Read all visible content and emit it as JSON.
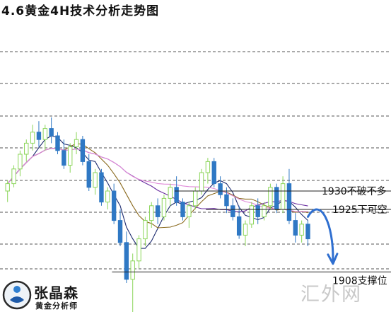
{
  "title": "4.6黄金4H技术分析走势图",
  "brand": {
    "name": "张晶森",
    "subtitle": "黄金分析师"
  },
  "watermark": "汇外网",
  "chart_data": {
    "type": "candlestick",
    "title": "4.6黄金4H技术分析走势图",
    "timeframe": "4H",
    "grid": "dashed horizontal",
    "colors": {
      "bull": "#8cd65a",
      "bear": "#2f78c4",
      "ma_fast": "#1c2a6e",
      "ma_mid": "#8a6a1e",
      "ma_slow": "#6a2ea0",
      "ma_long": "#e08ad8",
      "forecast": "#2f6fd0"
    },
    "levels": [
      {
        "label": "1930不破不多",
        "price": 1930
      },
      {
        "label": "1925下可空",
        "price": 1925
      },
      {
        "label": "1908支撑位",
        "price": 1908
      }
    ],
    "candles": [
      [
        1930,
        1933,
        1927,
        1932
      ],
      [
        1932,
        1937,
        1931,
        1936
      ],
      [
        1936,
        1941,
        1934,
        1940
      ],
      [
        1940,
        1944,
        1938,
        1943
      ],
      [
        1943,
        1948,
        1941,
        1946
      ],
      [
        1946,
        1949,
        1942,
        1944
      ],
      [
        1944,
        1948,
        1941,
        1947
      ],
      [
        1947,
        1950,
        1943,
        1945
      ],
      [
        1945,
        1946,
        1940,
        1941
      ],
      [
        1941,
        1944,
        1936,
        1937
      ],
      [
        1937,
        1943,
        1935,
        1942
      ],
      [
        1942,
        1946,
        1940,
        1944
      ],
      [
        1944,
        1945,
        1937,
        1938
      ],
      [
        1938,
        1940,
        1930,
        1931
      ],
      [
        1931,
        1936,
        1929,
        1935
      ],
      [
        1935,
        1936,
        1926,
        1927
      ],
      [
        1927,
        1931,
        1925,
        1930
      ],
      [
        1930,
        1932,
        1921,
        1922
      ],
      [
        1922,
        1925,
        1915,
        1916
      ],
      [
        1916,
        1919,
        1905,
        1906
      ],
      [
        1906,
        1913,
        1897,
        1911
      ],
      [
        1911,
        1918,
        1909,
        1917
      ],
      [
        1917,
        1923,
        1915,
        1922
      ],
      [
        1922,
        1927,
        1920,
        1926
      ],
      [
        1926,
        1928,
        1921,
        1923
      ],
      [
        1923,
        1929,
        1922,
        1928
      ],
      [
        1928,
        1932,
        1926,
        1931
      ],
      [
        1931,
        1934,
        1926,
        1927
      ],
      [
        1927,
        1928,
        1922,
        1923
      ],
      [
        1923,
        1927,
        1920,
        1926
      ],
      [
        1926,
        1931,
        1925,
        1930
      ],
      [
        1930,
        1936,
        1929,
        1935
      ],
      [
        1935,
        1939,
        1932,
        1938
      ],
      [
        1938,
        1939,
        1931,
        1932
      ],
      [
        1932,
        1934,
        1928,
        1929
      ],
      [
        1929,
        1931,
        1924,
        1926
      ],
      [
        1926,
        1928,
        1922,
        1923
      ],
      [
        1923,
        1926,
        1917,
        1918
      ],
      [
        1918,
        1922,
        1915,
        1921
      ],
      [
        1921,
        1927,
        1920,
        1926
      ],
      [
        1926,
        1928,
        1921,
        1923
      ],
      [
        1923,
        1927,
        1922,
        1926
      ],
      [
        1926,
        1932,
        1925,
        1931
      ],
      [
        1931,
        1932,
        1924,
        1925
      ],
      [
        1925,
        1934,
        1924,
        1932
      ],
      [
        1932,
        1936,
        1921,
        1922
      ],
      [
        1922,
        1924,
        1916,
        1918
      ],
      [
        1918,
        1922,
        1916,
        1921
      ],
      [
        1921,
        1922,
        1915,
        1917
      ]
    ],
    "forecast_path": [
      [
        48,
        1923
      ],
      [
        50,
        1925
      ],
      [
        51,
        1919
      ],
      [
        52,
        1911
      ]
    ]
  }
}
